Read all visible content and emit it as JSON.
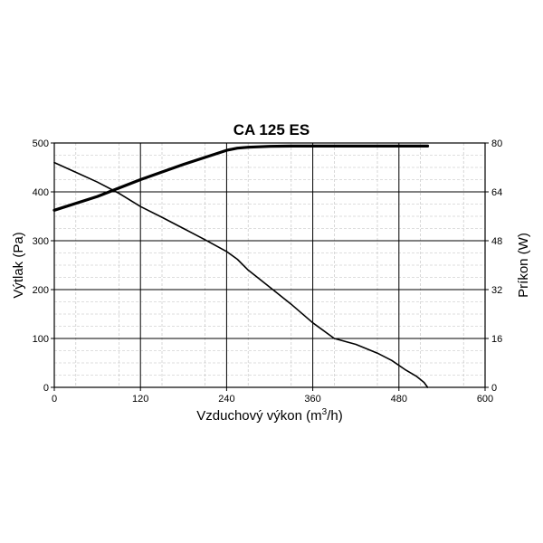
{
  "chart_data": {
    "type": "line",
    "title": "CA 125 ES",
    "xlabel": "Vzduchový výkon (m³/h)",
    "ylabel": "Výtlak (Pa)",
    "y2label": "Príkon (W)",
    "xlim": [
      0,
      600
    ],
    "ylim": [
      0,
      500
    ],
    "y2lim": [
      0,
      80
    ],
    "xticks": [
      "0",
      "120",
      "240",
      "360",
      "480",
      "600"
    ],
    "yticks": [
      "0",
      "100",
      "200",
      "300",
      "400",
      "500"
    ],
    "y2ticks": [
      "0",
      "16",
      "32",
      "48",
      "64",
      "80"
    ],
    "grid": true,
    "series": [
      {
        "axis": "left",
        "color": "#000000",
        "x": [
          0,
          30,
          60,
          90,
          120,
          150,
          180,
          210,
          240,
          255,
          270,
          300,
          330,
          360,
          390,
          420,
          450,
          470,
          490,
          505,
          515,
          520
        ],
        "y": [
          460,
          440,
          420,
          397,
          370,
          348,
          325,
          302,
          278,
          262,
          240,
          205,
          170,
          132,
          100,
          88,
          70,
          55,
          35,
          22,
          10,
          0
        ]
      },
      {
        "axis": "right",
        "color": "#000000",
        "x": [
          0,
          60,
          120,
          180,
          240,
          255,
          270,
          300,
          330,
          360,
          420,
          480,
          520
        ],
        "y": [
          58,
          62.5,
          68,
          73,
          77.6,
          78.3,
          78.6,
          78.9,
          79,
          79,
          79,
          79,
          79
        ]
      }
    ]
  }
}
